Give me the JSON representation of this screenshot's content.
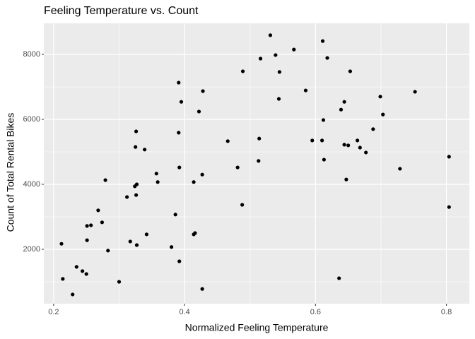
{
  "chart_data": {
    "type": "scatter",
    "title": "Feeling Temperature vs. Count",
    "x_label": "Normalized Feeling Temperature",
    "y_label": "Count of Total Rental Bikes",
    "x": [
      0.212,
      0.214,
      0.229,
      0.235,
      0.244,
      0.25,
      0.251,
      0.251,
      0.257,
      0.268,
      0.274,
      0.279,
      0.283,
      0.3,
      0.312,
      0.317,
      0.324,
      0.325,
      0.326,
      0.326,
      0.327,
      0.327,
      0.339,
      0.342,
      0.357,
      0.359,
      0.38,
      0.386,
      0.391,
      0.391,
      0.392,
      0.392,
      0.395,
      0.414,
      0.414,
      0.416,
      0.422,
      0.427,
      0.428,
      0.427,
      0.466,
      0.481,
      0.488,
      0.489,
      0.513,
      0.514,
      0.516,
      0.531,
      0.539,
      0.544,
      0.545,
      0.567,
      0.585,
      0.595,
      0.61,
      0.611,
      0.612,
      0.613,
      0.618,
      0.639,
      0.636,
      0.644,
      0.644,
      0.647,
      0.65,
      0.653,
      0.664,
      0.668,
      0.677,
      0.688,
      0.699,
      0.703,
      0.729,
      0.752,
      0.804,
      0.804
    ],
    "values": [
      2170,
      1090,
      610,
      1460,
      1330,
      1240,
      2280,
      2720,
      2740,
      3200,
      2830,
      4130,
      1960,
      1000,
      3610,
      2240,
      3940,
      5150,
      5630,
      3670,
      4000,
      2130,
      5070,
      2460,
      4330,
      4070,
      2070,
      3070,
      7130,
      5590,
      4520,
      1630,
      6540,
      2460,
      4070,
      2500,
      6240,
      4300,
      6870,
      780,
      5330,
      4520,
      3370,
      7480,
      4720,
      5410,
      7870,
      8590,
      7980,
      6630,
      7460,
      8150,
      6890,
      5350,
      5350,
      8410,
      5980,
      4760,
      7890,
      6300,
      1110,
      6540,
      5220,
      4150,
      5200,
      7480,
      5350,
      5130,
      4980,
      5700,
      6700,
      6150,
      4480,
      6850,
      4850,
      3300
    ],
    "color": "#000000",
    "xlim": [
      0.185,
      0.835
    ],
    "ylim": [
      326,
      8957
    ],
    "xticks": [
      0.2,
      0.4,
      0.6,
      0.8
    ],
    "yticks": [
      2000,
      4000,
      6000,
      8000
    ],
    "grid": true
  }
}
